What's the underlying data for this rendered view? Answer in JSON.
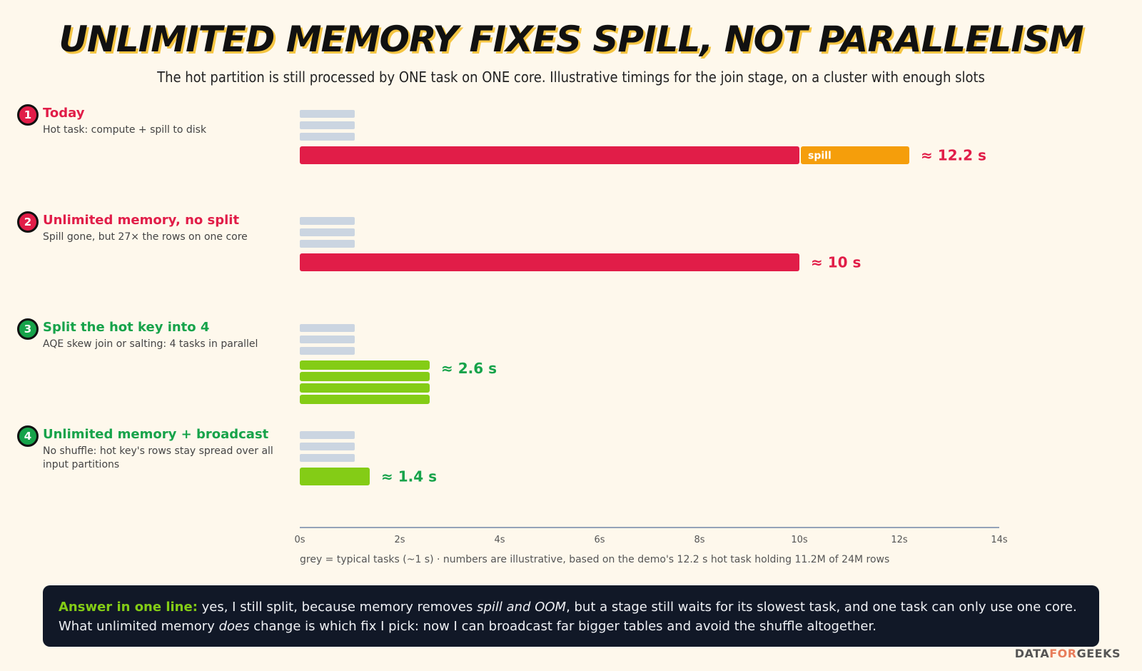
{
  "header": {
    "title": "UNLIMITED MEMORY FIXES SPILL, NOT PARALLELISM",
    "subtitle": "The hot partition is still processed by ONE task on ONE core. Illustrative timings for the join stage, on a cluster with enough slots"
  },
  "colors": {
    "red": "#e11d48",
    "orange": "#f59e0b",
    "green_bar": "#84cc16",
    "green_text": "#16a34a",
    "grey": "#cbd5e1",
    "axis": "#94a3b8"
  },
  "scenarios": [
    {
      "num": "1",
      "title": "Today",
      "desc": "Hot task: compute + spill to disk",
      "theme": "red"
    },
    {
      "num": "2",
      "title": "Unlimited memory, no split",
      "desc": "Spill gone, but 27× the rows on one core",
      "theme": "red"
    },
    {
      "num": "3",
      "title": "Split the hot key into 4",
      "desc": "AQE skew join or salting: 4 tasks in parallel",
      "theme": "green"
    },
    {
      "num": "4",
      "title": "Unlimited memory + broadcast",
      "desc": "No shuffle: hot key's rows stay spread over all input partitions",
      "theme": "green"
    }
  ],
  "chart_data": {
    "type": "bar",
    "orientation": "horizontal",
    "xlim": [
      0,
      14
    ],
    "x_unit": "s",
    "ticks": [
      "0s",
      "2s",
      "4s",
      "6s",
      "8s",
      "10s",
      "12s",
      "14s"
    ],
    "tick_values": [
      0,
      2,
      4,
      6,
      8,
      10,
      12,
      14
    ],
    "groups": [
      {
        "scenario": "Today",
        "typical_tasks": [
          1.1,
          1.1,
          1.1
        ],
        "hot_tasks": [
          {
            "segments": [
              {
                "value": 10,
                "color": "red",
                "label": ""
              },
              {
                "value": 2.2,
                "color": "orange",
                "label": "spill"
              }
            ]
          }
        ],
        "total_label": "≈ 12.2 s",
        "theme": "red"
      },
      {
        "scenario": "Unlimited memory, no split",
        "typical_tasks": [
          1.1,
          1.1,
          1.1
        ],
        "hot_tasks": [
          {
            "segments": [
              {
                "value": 10,
                "color": "red",
                "label": ""
              }
            ]
          }
        ],
        "total_label": "≈ 10 s",
        "theme": "red"
      },
      {
        "scenario": "Split the hot key into 4",
        "typical_tasks": [
          1.1,
          1.1,
          1.1
        ],
        "hot_tasks": [
          {
            "segments": [
              {
                "value": 2.6,
                "color": "green_bar",
                "label": ""
              }
            ]
          },
          {
            "segments": [
              {
                "value": 2.6,
                "color": "green_bar",
                "label": ""
              }
            ]
          },
          {
            "segments": [
              {
                "value": 2.6,
                "color": "green_bar",
                "label": ""
              }
            ]
          },
          {
            "segments": [
              {
                "value": 2.6,
                "color": "green_bar",
                "label": ""
              }
            ]
          }
        ],
        "total_label": "≈ 2.6 s",
        "theme": "green"
      },
      {
        "scenario": "Unlimited memory + broadcast",
        "typical_tasks": [
          1.1,
          1.1,
          1.1
        ],
        "hot_tasks": [
          {
            "segments": [
              {
                "value": 1.4,
                "color": "green_bar",
                "label": ""
              }
            ]
          }
        ],
        "total_label": "≈ 1.4 s",
        "theme": "green"
      }
    ],
    "legend_note": "grey = typical tasks (~1 s) · numbers are illustrative, based on the demo's 12.2 s hot task holding 11.2M of 24M rows"
  },
  "answer": {
    "lead": "Answer in one line:",
    "part1": " yes, I still split, because memory removes ",
    "em1": "spill and OOM",
    "part2": ", but a stage still waits for its slowest task, and one task can only use one core. What unlimited memory ",
    "em2": "does",
    "part3": " change is which fix I pick: now I can broadcast far bigger tables and avoid the shuffle altogether."
  },
  "brand": {
    "left": "DATA",
    "mid": "FOR",
    "right": "GEEKS"
  }
}
